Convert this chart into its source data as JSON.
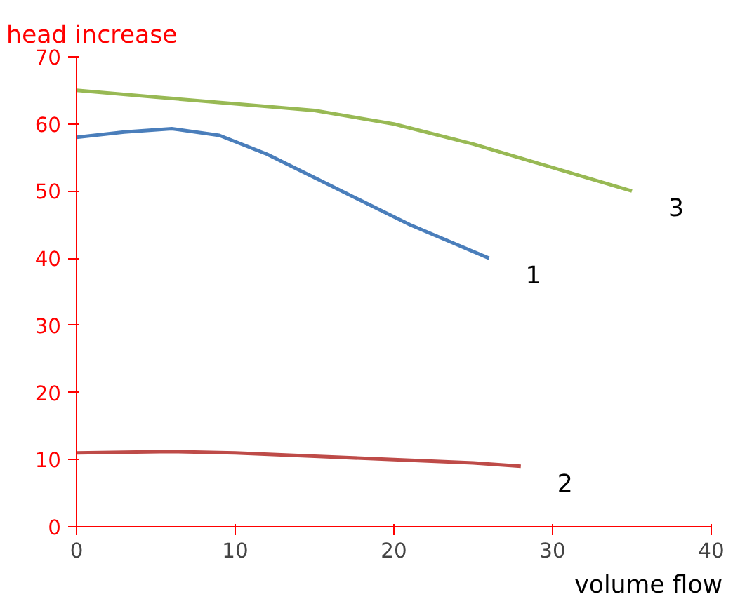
{
  "chart_data": {
    "type": "line",
    "xlabel": "volume flow",
    "ylabel": "head increase",
    "xlim": [
      0,
      40
    ],
    "xticks": [
      0,
      10,
      20,
      30,
      40
    ],
    "ylim": [
      0,
      70
    ],
    "yticks": [
      0,
      10,
      20,
      30,
      40,
      50,
      60,
      70
    ],
    "grid": false,
    "marker": "none",
    "line_style": "solid",
    "series": [
      {
        "name": "1",
        "color": "#4a7ebb",
        "x": [
          0,
          3,
          6,
          9,
          12,
          15,
          18,
          21,
          24,
          26
        ],
        "values": [
          58,
          58.8,
          59.3,
          58.3,
          55.5,
          52,
          48.5,
          45,
          42,
          40
        ]
      },
      {
        "name": "2",
        "color": "#be4b48",
        "x": [
          0,
          6,
          10,
          15,
          20,
          25,
          28
        ],
        "values": [
          11,
          11.2,
          11,
          10.5,
          10,
          9.5,
          9
        ]
      },
      {
        "name": "3",
        "color": "#98b954",
        "x": [
          0,
          5,
          10,
          15,
          20,
          25,
          30,
          35
        ],
        "values": [
          65,
          64,
          63,
          62,
          60,
          57,
          53.5,
          50
        ]
      }
    ]
  }
}
